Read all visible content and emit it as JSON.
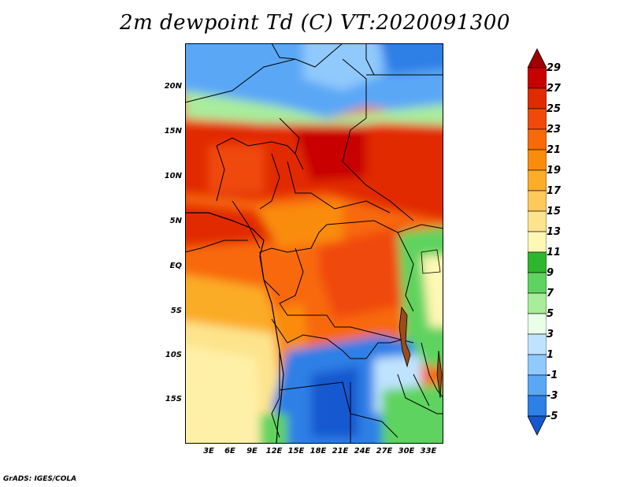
{
  "title": "2m dewpoint Td (C) VT:2020091300",
  "footer": "GrADS: IGES/COLA",
  "map": {
    "variable": "2m dewpoint",
    "units": "C",
    "valid_time": "2020091300",
    "lat_labels": [
      "20N",
      "15N",
      "10N",
      "5N",
      "EQ",
      "5S",
      "10S",
      "15S"
    ],
    "lon_labels": [
      "3E",
      "6E",
      "9E",
      "12E",
      "15E",
      "18E",
      "21E",
      "24E",
      "27E",
      "30E",
      "33E"
    ]
  },
  "colorbar": {
    "labels": [
      "29",
      "27",
      "25",
      "23",
      "21",
      "19",
      "17",
      "15",
      "13",
      "11",
      "9",
      "7",
      "5",
      "3",
      "1",
      "-1",
      "-3",
      "-5"
    ],
    "colors": [
      "#a00000",
      "#c80000",
      "#e22a00",
      "#f04a0a",
      "#f8690a",
      "#fa8c0c",
      "#fbac28",
      "#fcc95a",
      "#fde48c",
      "#fff7b4",
      "#2fb62f",
      "#5fd35f",
      "#a8ec9c",
      "#e8ffe8",
      "#bfe3ff",
      "#90c9fc",
      "#5aa7f6",
      "#2e7fe6",
      "#1458cf"
    ]
  }
}
